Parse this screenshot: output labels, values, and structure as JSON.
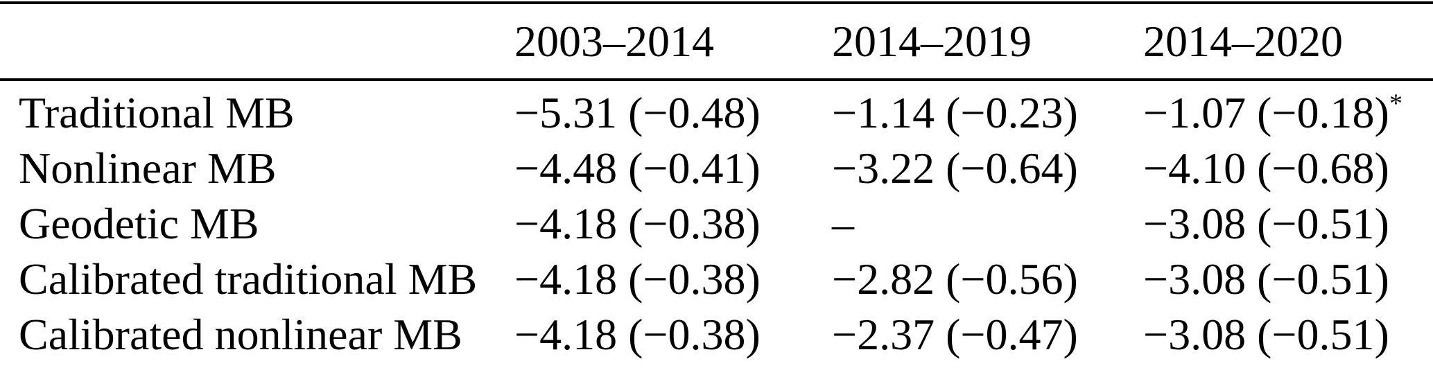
{
  "table": {
    "columns": [
      "",
      "2003–2014",
      "2014–2019",
      "2014–2020"
    ],
    "rows": [
      {
        "label": "Traditional MB",
        "values": [
          {
            "text": "−5.31 (−0.48)",
            "sup": ""
          },
          {
            "text": "−1.14 (−0.23)",
            "sup": ""
          },
          {
            "text": "−1.07 (−0.18)",
            "sup": "*"
          }
        ]
      },
      {
        "label": "Nonlinear MB",
        "values": [
          {
            "text": "−4.48 (−0.41)",
            "sup": ""
          },
          {
            "text": "−3.22 (−0.64)",
            "sup": ""
          },
          {
            "text": "−4.10 (−0.68)",
            "sup": ""
          }
        ]
      },
      {
        "label": "Geodetic MB",
        "values": [
          {
            "text": "−4.18 (−0.38)",
            "sup": ""
          },
          {
            "text": "–",
            "sup": ""
          },
          {
            "text": "−3.08 (−0.51)",
            "sup": ""
          }
        ]
      },
      {
        "label": "Calibrated traditional MB",
        "values": [
          {
            "text": "−4.18 (−0.38)",
            "sup": ""
          },
          {
            "text": "−2.82 (−0.56)",
            "sup": ""
          },
          {
            "text": "−3.08 (−0.51)",
            "sup": ""
          }
        ]
      },
      {
        "label": "Calibrated nonlinear MB",
        "values": [
          {
            "text": "−4.18 (−0.38)",
            "sup": ""
          },
          {
            "text": "−2.37 (−0.47)",
            "sup": ""
          },
          {
            "text": "−3.08 (−0.51)",
            "sup": ""
          }
        ]
      }
    ]
  },
  "chart_data": {
    "type": "table",
    "title": "",
    "columns": [
      "",
      "2003–2014",
      "2014–2019",
      "2014–2020"
    ],
    "rows": [
      [
        "Traditional MB",
        "−5.31 (−0.48)",
        "−1.14 (−0.23)",
        "−1.07 (−0.18)*"
      ],
      [
        "Nonlinear MB",
        "−4.48 (−0.41)",
        "−3.22 (−0.64)",
        "−4.10 (−0.68)"
      ],
      [
        "Geodetic MB",
        "−4.18 (−0.38)",
        "–",
        "−3.08 (−0.51)"
      ],
      [
        "Calibrated traditional MB",
        "−4.18 (−0.38)",
        "−2.82 (−0.56)",
        "−3.08 (−0.51)"
      ],
      [
        "Calibrated nonlinear MB",
        "−4.18 (−0.38)",
        "−2.37 (−0.47)",
        "−3.08 (−0.51)"
      ]
    ]
  }
}
